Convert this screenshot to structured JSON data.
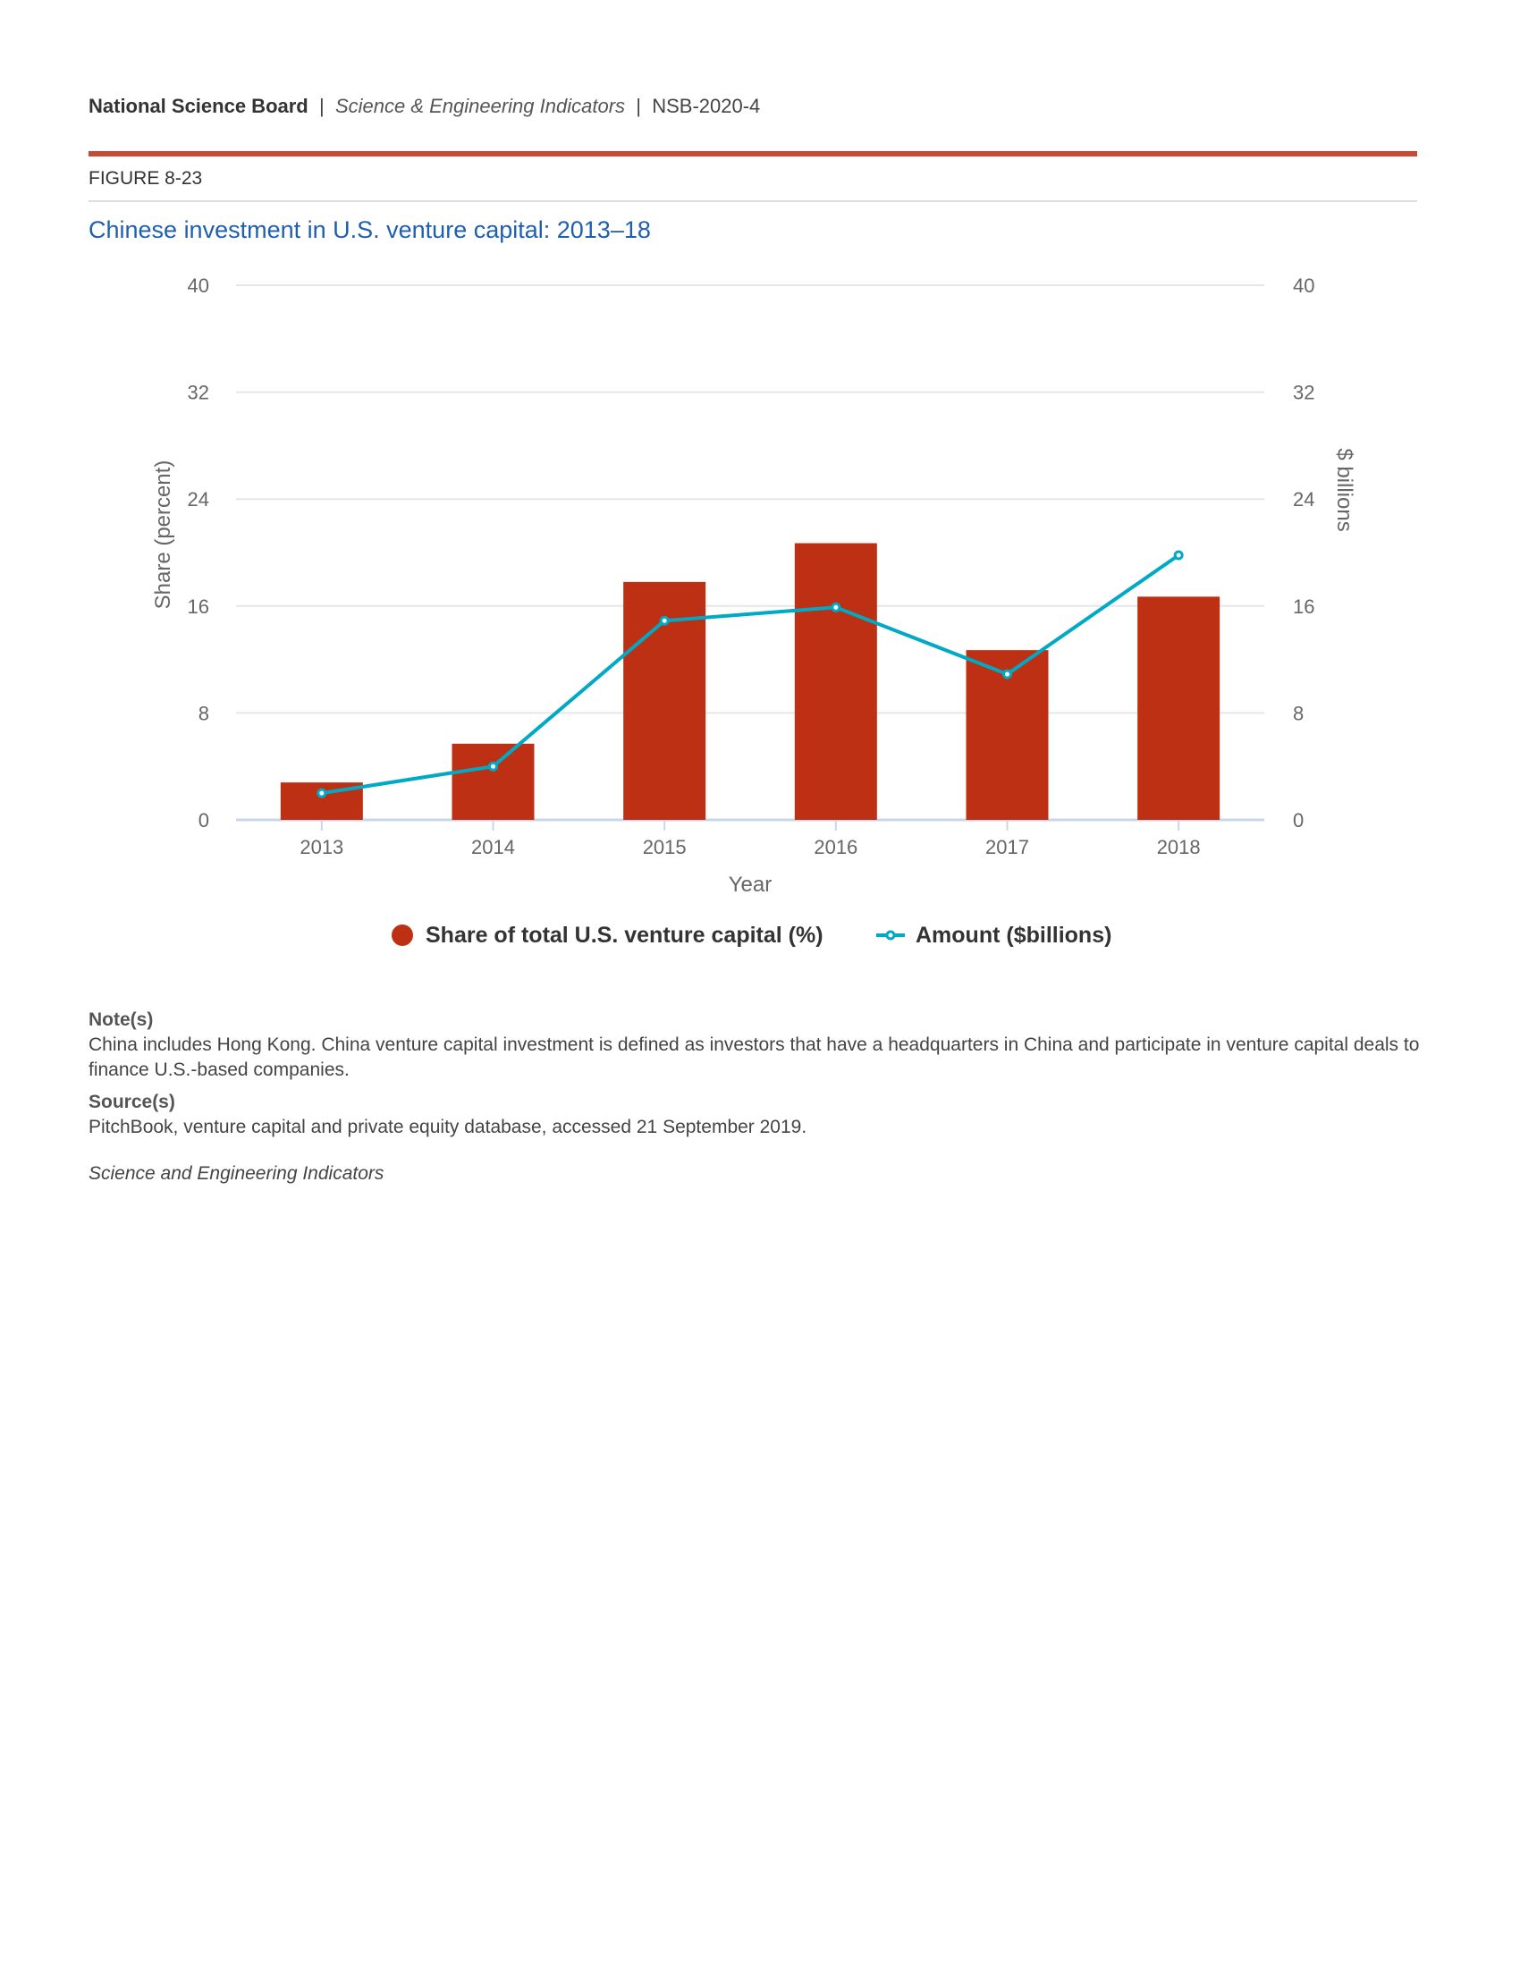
{
  "header": {
    "org": "National Science Board",
    "series": "Science & Engineering Indicators",
    "report": "NSB-2020-4",
    "sep": "|"
  },
  "figure_label": "FIGURE 8-23",
  "colors": {
    "bar": "#bd3014",
    "line": "#00a9c4",
    "title": "#1f5fb0",
    "rule": "#c94a34"
  },
  "chart_data": {
    "type": "bar+line",
    "title": "Chinese investment in U.S. venture capital: 2013–18",
    "xlabel": "Year",
    "ylabel": "Share (percent)",
    "y2label": "$ billions",
    "categories": [
      "2013",
      "2014",
      "2015",
      "2016",
      "2017",
      "2018"
    ],
    "ylim": [
      0,
      40
    ],
    "y2lim": [
      0,
      40
    ],
    "yticks": [
      "0",
      "8",
      "16",
      "24",
      "32",
      "40"
    ],
    "grid": true,
    "legend_placement": "bottom",
    "series": [
      {
        "name": "Share of total U.S. venture capital (%)",
        "type": "bar",
        "axis": "left",
        "values": [
          2.8,
          5.7,
          17.8,
          20.7,
          12.7,
          16.7
        ]
      },
      {
        "name": "Amount ($billions)",
        "type": "line",
        "axis": "right",
        "values": [
          2.0,
          4.0,
          14.9,
          15.9,
          10.9,
          19.8
        ]
      }
    ]
  },
  "notes": {
    "notes_heading": "Note(s)",
    "notes_text": "China includes Hong Kong. China venture capital investment is defined as investors that have a headquarters in China and participate in venture capital deals to finance U.S.-based companies.",
    "source_heading": "Source(s)",
    "source_text": "PitchBook, venture capital and private equity database, accessed 21 September 2019.",
    "footer": "Science and Engineering Indicators"
  }
}
